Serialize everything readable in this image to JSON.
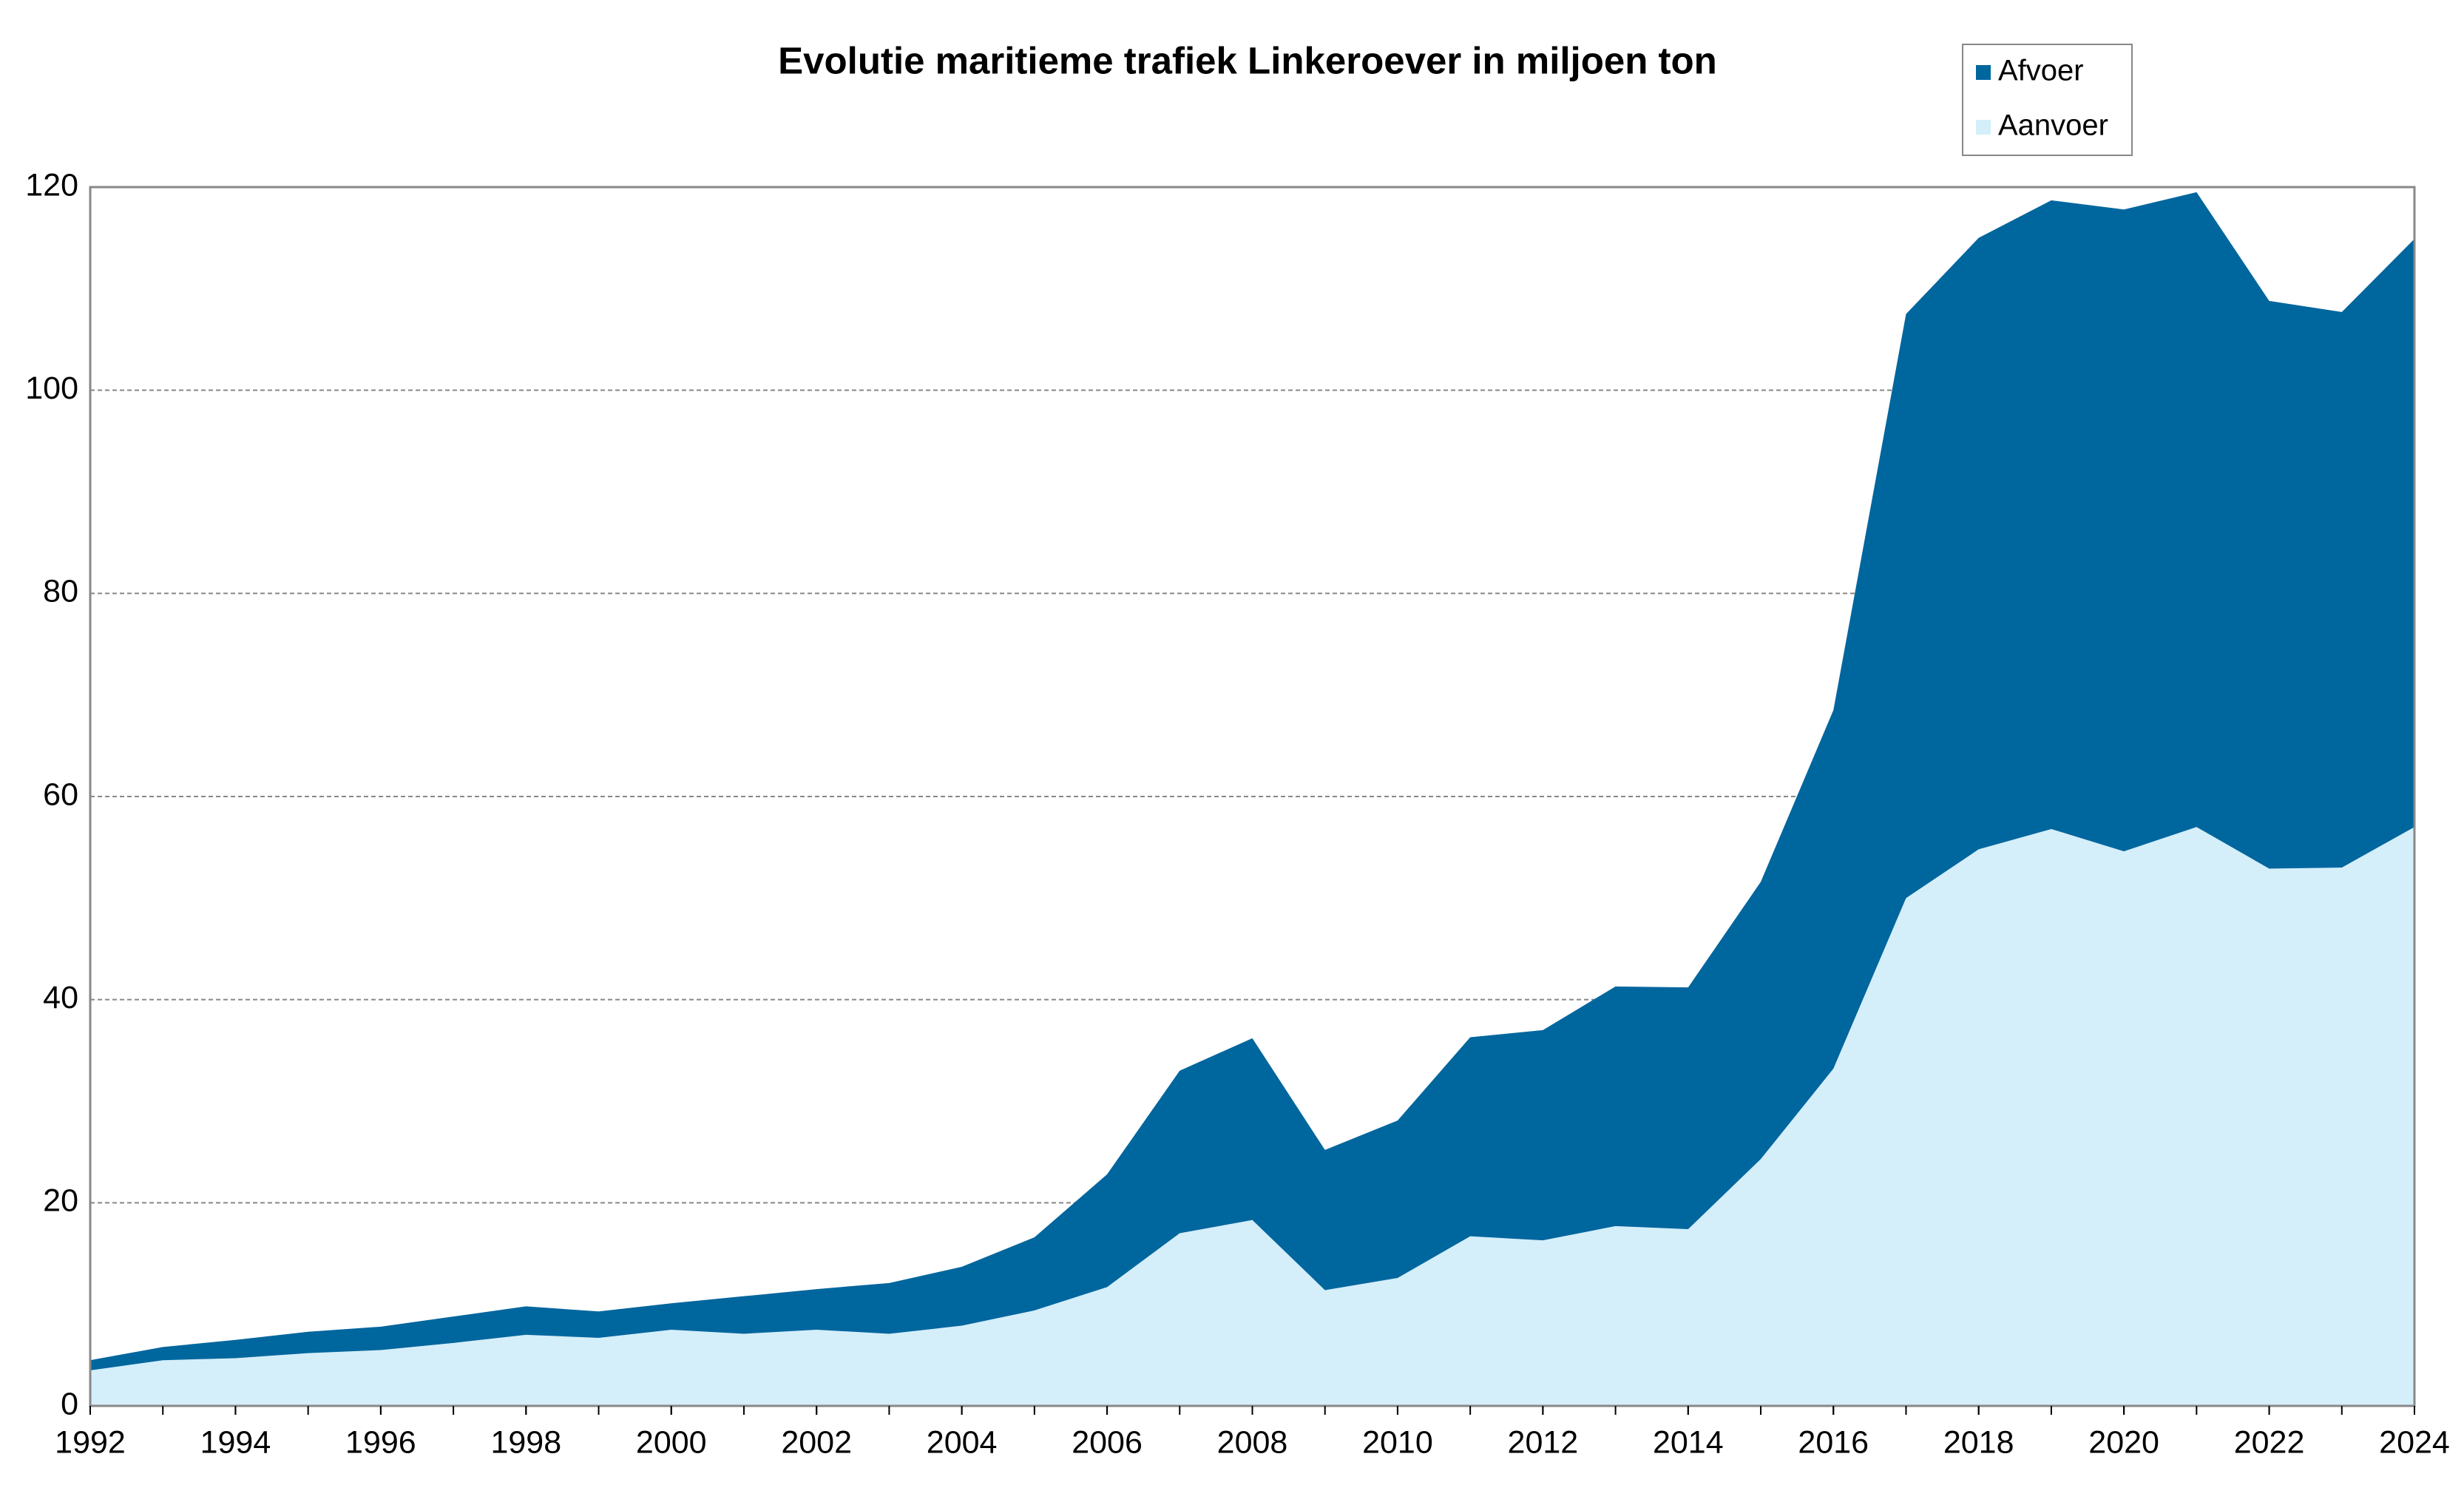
{
  "chart_data": {
    "type": "area",
    "stacked": true,
    "title": "Evolutie maritieme trafiek Linkeroever in miljoen ton",
    "x": [
      1992,
      1993,
      1994,
      1995,
      1996,
      1997,
      1998,
      1999,
      2000,
      2001,
      2002,
      2003,
      2004,
      2005,
      2006,
      2007,
      2008,
      2009,
      2010,
      2011,
      2012,
      2013,
      2014,
      2015,
      2016,
      2017,
      2018,
      2019,
      2020,
      2021,
      2022,
      2023,
      2024
    ],
    "series": [
      {
        "name": "Afvoer",
        "color": "#00669e",
        "values": [
          1.0,
          1.3,
          1.8,
          2.1,
          2.3,
          2.6,
          2.8,
          2.6,
          2.6,
          3.7,
          4.0,
          5.0,
          5.8,
          7.2,
          11.1,
          16.0,
          17.9,
          13.8,
          15.5,
          19.6,
          20.7,
          23.6,
          23.8,
          27.3,
          35.3,
          57.5,
          60.2,
          61.9,
          63.2,
          62.5,
          55.9,
          54.7,
          57.9
        ]
      },
      {
        "name": "Aanvoer",
        "color": "#d4eefa",
        "values": [
          3.5,
          4.5,
          4.7,
          5.2,
          5.5,
          6.2,
          7.0,
          6.7,
          7.5,
          7.1,
          7.5,
          7.1,
          7.9,
          9.4,
          11.7,
          17.0,
          18.3,
          11.4,
          12.6,
          16.7,
          16.3,
          17.7,
          17.4,
          24.3,
          33.2,
          50.0,
          54.8,
          56.8,
          54.6,
          57.0,
          52.9,
          53.0,
          57.0
        ]
      }
    ],
    "xlim": [
      1992,
      2024
    ],
    "xticks": [
      1992,
      1994,
      1996,
      1998,
      2000,
      2002,
      2004,
      2006,
      2008,
      2010,
      2012,
      2014,
      2016,
      2018,
      2020,
      2022,
      2024
    ],
    "ylim": [
      0,
      120
    ],
    "yticks": [
      0,
      20,
      40,
      60,
      80,
      100,
      120
    ],
    "grid": true,
    "legend": "top-right"
  }
}
